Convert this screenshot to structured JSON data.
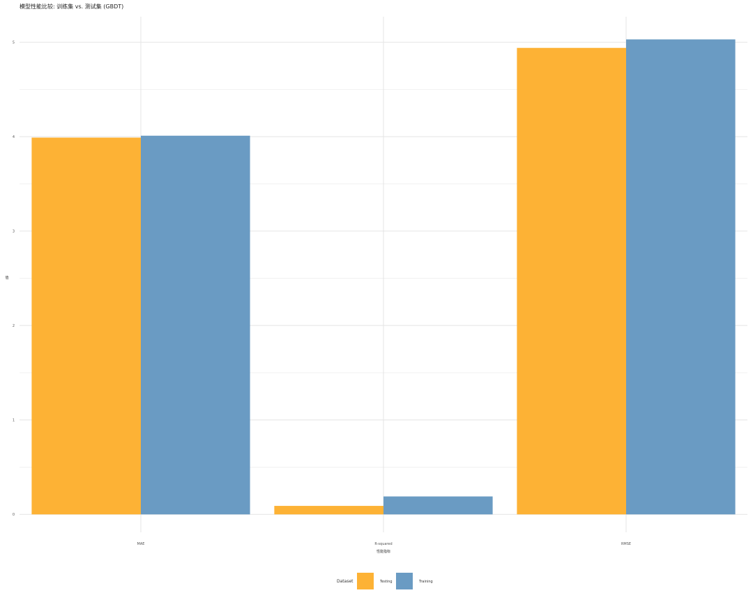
{
  "chart_data": {
    "type": "bar",
    "title": "模型性能比较: 训练集 vs. 测试集 (GBDT)",
    "xlabel": "性能指标",
    "ylabel": "值",
    "categories": [
      "MAE",
      "R-squared",
      "RMSE"
    ],
    "series": [
      {
        "name": "Testing",
        "values": [
          3.99,
          0.09,
          4.94
        ],
        "color": "#FDB235"
      },
      {
        "name": "Training",
        "values": [
          4.01,
          0.19,
          5.03
        ],
        "color": "#6A9BC3"
      }
    ],
    "yticks": [
      0,
      1,
      2,
      3,
      4,
      5
    ],
    "ylim": [
      -0.19,
      5.27
    ],
    "grid": true,
    "legend": {
      "title": "Dataset",
      "position": "bottom"
    }
  }
}
